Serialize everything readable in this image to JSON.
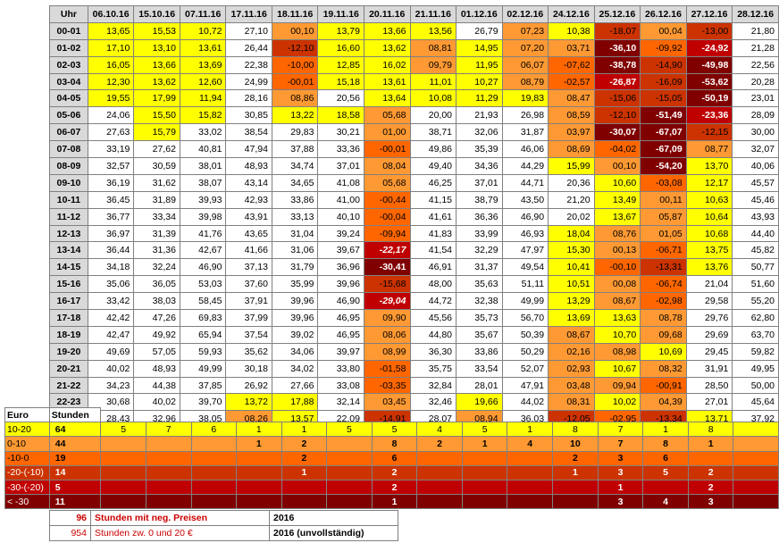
{
  "grid": {
    "corner": "Uhr",
    "dates": [
      "06.10.16",
      "15.10.16",
      "07.11.16",
      "17.11.16",
      "18.11.16",
      "19.11.16",
      "20.11.16",
      "21.11.16",
      "01.12.16",
      "02.12.16",
      "24.12.16",
      "25.12.16",
      "26.12.16",
      "27.12.16",
      "28.12.16"
    ],
    "rows": [
      {
        "h": "00-01",
        "v": [
          "13,65",
          "15,53",
          "10,72",
          "27,10",
          "00,10",
          "13,79",
          "13,66",
          "13,56",
          "26,79",
          "07,23",
          "10,38",
          "-18,07",
          "00,04",
          "-13,00",
          "21,80"
        ]
      },
      {
        "h": "01-02",
        "v": [
          "17,10",
          "13,10",
          "13,61",
          "26,44",
          "-12,10",
          "16,60",
          "13,62",
          "08,81",
          "14,95",
          "07,20",
          "03,71",
          "-36,10",
          "-09,92",
          "-24,92",
          "21,28"
        ]
      },
      {
        "h": "02-03",
        "v": [
          "16,05",
          "13,66",
          "13,69",
          "22,38",
          "-10,00",
          "12,85",
          "16,02",
          "09,79",
          "11,95",
          "06,07",
          "-07,62",
          "-38,78",
          "-14,90",
          "-49,98",
          "22,56"
        ]
      },
      {
        "h": "03-04",
        "v": [
          "12,30",
          "13,62",
          "12,60",
          "24,99",
          "-00,01",
          "15,18",
          "13,61",
          "11,01",
          "10,27",
          "08,79",
          "-02,57",
          "-26,87",
          "-16,09",
          "-53,62",
          "20,28"
        ]
      },
      {
        "h": "04-05",
        "v": [
          "19,55",
          "17,99",
          "11,94",
          "28,16",
          "08,86",
          "20,56",
          "13,64",
          "10,08",
          "11,29",
          "19,83",
          "08,47",
          "-15,06",
          "-15,05",
          "-50,19",
          "23,01"
        ]
      },
      {
        "h": "05-06",
        "v": [
          "24,06",
          "15,50",
          "15,82",
          "30,85",
          "13,22",
          "18,58",
          "05,68",
          "20,00",
          "21,93",
          "26,98",
          "08,59",
          "-12,10",
          "-51,49",
          "-23,36",
          "28,09"
        ]
      },
      {
        "h": "06-07",
        "v": [
          "27,63",
          "15,79",
          "33,02",
          "38,54",
          "29,83",
          "30,21",
          "01,00",
          "38,71",
          "32,06",
          "31,87",
          "03,97",
          "-30,07",
          "-67,07",
          "-12,15",
          "30,00"
        ]
      },
      {
        "h": "07-08",
        "v": [
          "33,19",
          "27,62",
          "40,81",
          "47,94",
          "37,88",
          "33,36",
          "-00,01",
          "49,86",
          "35,39",
          "46,06",
          "08,69",
          "-04,02",
          "-67,09",
          "08,77",
          "32,07"
        ]
      },
      {
        "h": "08-09",
        "v": [
          "32,57",
          "30,59",
          "38,01",
          "48,93",
          "34,74",
          "37,01",
          "08,04",
          "49,40",
          "34,36",
          "44,29",
          "15,99",
          "00,10",
          "-54,20",
          "13,70",
          "40,06"
        ]
      },
      {
        "h": "09-10",
        "v": [
          "36,19",
          "31,62",
          "38,07",
          "43,14",
          "34,65",
          "41,08",
          "05,68",
          "46,25",
          "37,01",
          "44,71",
          "20,36",
          "10,60",
          "-03,08",
          "12,17",
          "45,57"
        ]
      },
      {
        "h": "10-11",
        "v": [
          "36,45",
          "31,89",
          "39,93",
          "42,93",
          "33,86",
          "41,00",
          "-00,44",
          "41,15",
          "38,79",
          "43,50",
          "21,20",
          "13,49",
          "00,11",
          "10,63",
          "45,46"
        ]
      },
      {
        "h": "11-12",
        "v": [
          "36,77",
          "33,34",
          "39,98",
          "43,91",
          "33,13",
          "40,10",
          "-00,04",
          "41,61",
          "36,36",
          "46,90",
          "20,02",
          "13,67",
          "05,87",
          "10,64",
          "43,93"
        ]
      },
      {
        "h": "12-13",
        "v": [
          "36,97",
          "31,39",
          "41,76",
          "43,65",
          "31,04",
          "39,24",
          "-09,94",
          "41,83",
          "33,99",
          "46,93",
          "18,04",
          "08,76",
          "01,05",
          "10,68",
          "44,40"
        ]
      },
      {
        "h": "13-14",
        "v": [
          "36,44",
          "31,36",
          "42,67",
          "41,66",
          "31,06",
          "39,67",
          "-22,17",
          "41,54",
          "32,29",
          "47,97",
          "15,30",
          "00,13",
          "-06,71",
          "13,75",
          "45,82"
        ]
      },
      {
        "h": "14-15",
        "v": [
          "34,18",
          "32,24",
          "46,90",
          "37,13",
          "31,79",
          "36,96",
          "-30,41",
          "46,91",
          "31,37",
          "49,54",
          "10,41",
          "-00,10",
          "-13,31",
          "13,76",
          "50,77"
        ]
      },
      {
        "h": "15-16",
        "v": [
          "35,06",
          "36,05",
          "53,03",
          "37,60",
          "35,99",
          "39,96",
          "-15,68",
          "48,00",
          "35,63",
          "51,11",
          "10,51",
          "00,08",
          "-06,74",
          "21,04",
          "51,60"
        ]
      },
      {
        "h": "16-17",
        "v": [
          "33,42",
          "38,03",
          "58,45",
          "37,91",
          "39,96",
          "46,90",
          "-29,04",
          "44,72",
          "32,38",
          "49,99",
          "13,29",
          "08,67",
          "-02,98",
          "29,58",
          "55,20"
        ]
      },
      {
        "h": "17-18",
        "v": [
          "42,42",
          "47,26",
          "69,83",
          "37,99",
          "39,96",
          "46,95",
          "09,90",
          "45,56",
          "35,73",
          "56,70",
          "13,69",
          "13,63",
          "08,78",
          "29,76",
          "62,80"
        ]
      },
      {
        "h": "18-19",
        "v": [
          "42,47",
          "49,92",
          "65,94",
          "37,54",
          "39,02",
          "46,95",
          "08,06",
          "44,80",
          "35,67",
          "50,39",
          "08,67",
          "10,70",
          "09,68",
          "29,69",
          "63,70"
        ]
      },
      {
        "h": "19-20",
        "v": [
          "49,69",
          "57,05",
          "59,93",
          "35,62",
          "34,06",
          "39,97",
          "08,99",
          "36,30",
          "33,86",
          "50,29",
          "02,16",
          "08,98",
          "10,69",
          "29,45",
          "59,82"
        ]
      },
      {
        "h": "20-21",
        "v": [
          "40,02",
          "48,93",
          "49,99",
          "30,18",
          "34,02",
          "33,80",
          "-01,58",
          "35,75",
          "33,54",
          "52,07",
          "02,93",
          "10,67",
          "08,32",
          "31,91",
          "49,95"
        ]
      },
      {
        "h": "21-22",
        "v": [
          "34,23",
          "44,38",
          "37,85",
          "26,92",
          "27,66",
          "33,08",
          "-03,35",
          "32,84",
          "28,01",
          "47,91",
          "03,48",
          "09,94",
          "-00,91",
          "28,50",
          "50,00"
        ]
      },
      {
        "h": "22-23",
        "v": [
          "30,68",
          "40,02",
          "39,70",
          "13,72",
          "17,88",
          "32,14",
          "03,45",
          "32,46",
          "19,66",
          "44,02",
          "08,31",
          "10,02",
          "04,39",
          "27,01",
          "45,64"
        ]
      },
      {
        "h": "23-24",
        "v": [
          "28,43",
          "32,96",
          "38,05",
          "08,26",
          "13,57",
          "22,09",
          "-14,91",
          "28,07",
          "08,94",
          "36,03",
          "-12,05",
          "-02,95",
          "-13,34",
          "13,71",
          "37,92"
        ]
      }
    ]
  },
  "summary": {
    "header_euro": "Euro",
    "header_stunden": "Stunden",
    "rows": [
      {
        "range": "10-20",
        "total": "64",
        "counts": [
          "5",
          "7",
          "6",
          "1",
          "1",
          "5",
          "5",
          "4",
          "5",
          "1",
          "8",
          "7",
          "1",
          "8",
          ""
        ],
        "color": "#ffff00"
      },
      {
        "range": "0-10",
        "total": "44",
        "counts": [
          "",
          "",
          "",
          "1",
          "2",
          "",
          "8",
          "2",
          "1",
          "4",
          "10",
          "7",
          "8",
          "1",
          ""
        ],
        "color": "#ff9933"
      },
      {
        "range": "-10-0",
        "total": "19",
        "counts": [
          "",
          "",
          "",
          "",
          "2",
          "",
          "6",
          "",
          "",
          "",
          "2",
          "3",
          "6",
          "",
          ""
        ],
        "color": "#ff6600"
      },
      {
        "range": "-20-(-10)",
        "total": "14",
        "counts": [
          "",
          "",
          "",
          "",
          "1",
          "",
          "2",
          "",
          "",
          "",
          "1",
          "3",
          "5",
          "2",
          ""
        ],
        "color": "#cc3300"
      },
      {
        "range": "-30-(-20)",
        "total": "5",
        "counts": [
          "",
          "",
          "",
          "",
          "",
          "",
          "2",
          "",
          "",
          "",
          "",
          "1",
          "",
          "2",
          ""
        ],
        "color": "#c00000"
      },
      {
        "range": "< -30",
        "total": "11",
        "counts": [
          "",
          "",
          "",
          "",
          "",
          "",
          "1",
          "",
          "",
          "",
          "",
          "3",
          "4",
          "3",
          ""
        ],
        "color": "#800000"
      }
    ]
  },
  "footer": {
    "neg_count": "96",
    "neg_label": "Stunden mit neg. Preisen",
    "neg_year": "2016",
    "pos_count": "954",
    "pos_label": "Stunden zw. 0 und 20 €",
    "pos_year": "2016 (unvollständig)"
  },
  "colors": {
    "yellow": "#ffff00",
    "orange": "#ff9933",
    "dark_orange": "#ff6600",
    "red": "#cc3300",
    "crimson": "#c00000",
    "brown": "#800000",
    "header_gray": "#d9d9d9"
  }
}
